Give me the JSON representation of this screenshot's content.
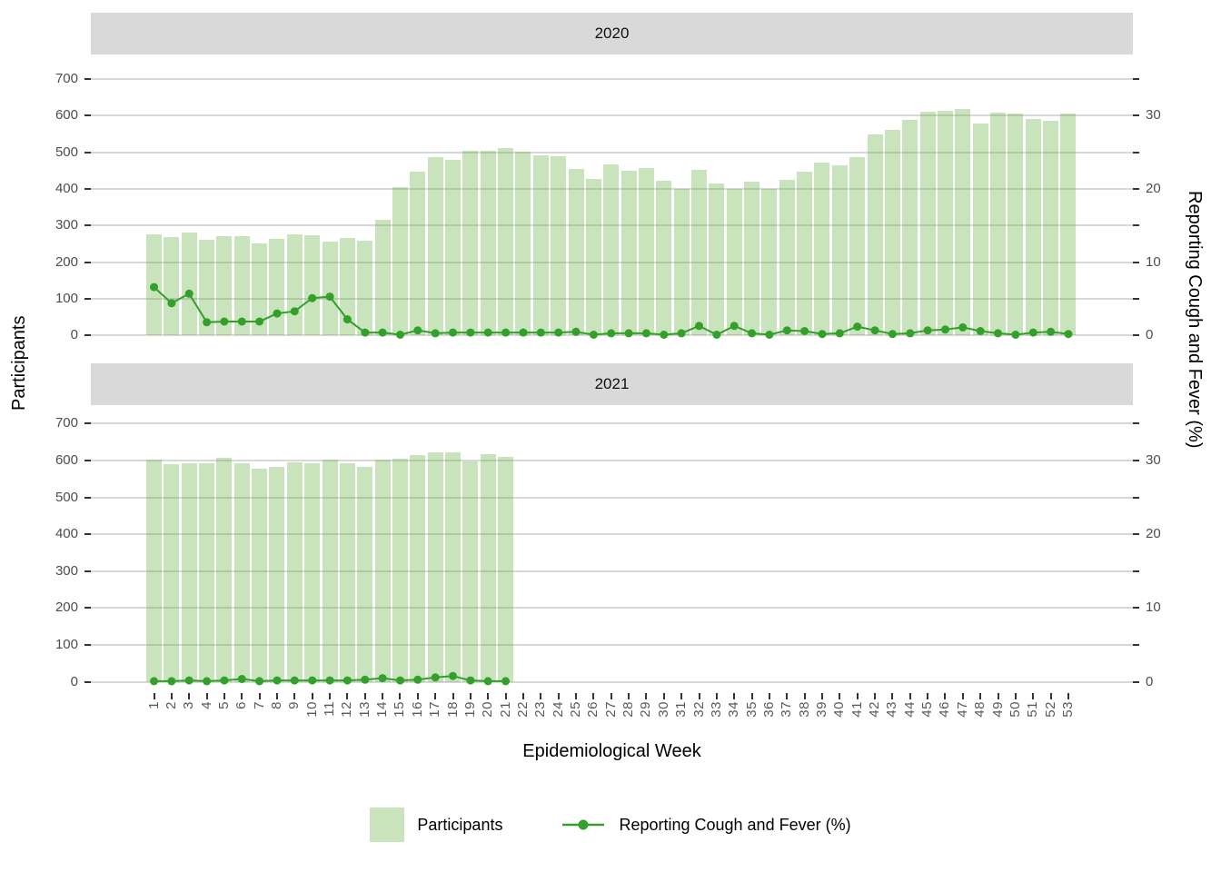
{
  "figure": {
    "x_axis": {
      "title": "Epidemiological Week",
      "ticks": [
        1,
        2,
        3,
        4,
        5,
        6,
        7,
        8,
        9,
        10,
        11,
        12,
        13,
        14,
        15,
        16,
        17,
        18,
        19,
        20,
        21,
        22,
        23,
        24,
        25,
        26,
        27,
        28,
        29,
        30,
        31,
        32,
        33,
        34,
        35,
        36,
        37,
        38,
        39,
        40,
        41,
        42,
        43,
        44,
        45,
        46,
        47,
        48,
        49,
        50,
        51,
        52,
        53
      ]
    },
    "left_axis": {
      "title": "Participants",
      "ticks": [
        0,
        100,
        200,
        300,
        400,
        500,
        600,
        700
      ]
    },
    "right_axis": {
      "title": "Reporting Cough and Fever (%)",
      "tick_labels": [
        0,
        10,
        20,
        30
      ],
      "minor_ticks": [
        5,
        15,
        25,
        35
      ]
    },
    "legend": {
      "items": [
        {
          "type": "fill",
          "label": "Participants"
        },
        {
          "type": "line",
          "label": "Reporting Cough and Fever (%)"
        }
      ]
    },
    "colors": {
      "bar_fill": "#c9e3bc",
      "line": "#33a02c",
      "strip_bg": "#d9d9d9",
      "gridline": "#d8d8d8",
      "axis_text": "#4d4d4d",
      "title_text": "#000000"
    }
  },
  "chart_data": [
    {
      "type": "bar",
      "facet": "2020",
      "x": [
        1,
        2,
        3,
        4,
        5,
        6,
        7,
        8,
        9,
        10,
        11,
        12,
        13,
        14,
        15,
        16,
        17,
        18,
        19,
        20,
        21,
        22,
        23,
        24,
        25,
        26,
        27,
        28,
        29,
        30,
        31,
        32,
        33,
        34,
        35,
        36,
        37,
        38,
        39,
        40,
        41,
        42,
        43,
        44,
        45,
        46,
        47,
        48,
        49,
        50,
        51,
        52,
        53
      ],
      "series": [
        {
          "name": "Participants",
          "type": "bar",
          "axis": "left",
          "values": [
            277,
            268,
            282,
            261,
            272,
            270,
            252,
            264,
            275,
            274,
            255,
            265,
            258,
            315,
            405,
            447,
            487,
            479,
            505,
            504,
            512,
            502,
            492,
            488,
            454,
            427,
            468,
            449,
            456,
            422,
            401,
            452,
            414,
            401,
            420,
            401,
            424,
            447,
            471,
            464,
            486,
            549,
            562,
            589,
            610,
            612,
            617,
            578,
            608,
            607,
            592,
            585,
            605
          ]
        },
        {
          "name": "Reporting Cough and Fever (%)",
          "type": "line",
          "axis": "right",
          "values": [
            6.6,
            4.4,
            5.7,
            1.8,
            1.9,
            1.9,
            1.9,
            3.0,
            3.3,
            5.1,
            5.3,
            2.2,
            0.4,
            0.4,
            0.1,
            0.7,
            0.3,
            0.4,
            0.4,
            0.4,
            0.4,
            0.4,
            0.4,
            0.4,
            0.5,
            0.1,
            0.3,
            0.3,
            0.3,
            0.1,
            0.3,
            1.3,
            0.1,
            1.3,
            0.3,
            0.1,
            0.7,
            0.6,
            0.2,
            0.3,
            1.2,
            0.7,
            0.2,
            0.3,
            0.7,
            0.8,
            1.1,
            0.6,
            0.3,
            0.1,
            0.4,
            0.5,
            0.2
          ]
        }
      ],
      "left_ylim": [
        0,
        700
      ],
      "right_ylim": [
        0,
        30
      ]
    },
    {
      "type": "bar",
      "facet": "2021",
      "x": [
        1,
        2,
        3,
        4,
        5,
        6,
        7,
        8,
        9,
        10,
        11,
        12,
        13,
        14,
        15,
        16,
        17,
        18,
        19,
        20,
        21
      ],
      "series": [
        {
          "name": "Participants",
          "type": "bar",
          "axis": "left",
          "values": [
            603,
            589,
            593,
            593,
            607,
            592,
            579,
            583,
            596,
            592,
            603,
            592,
            584,
            603,
            605,
            615,
            622,
            622,
            598,
            617,
            611
          ]
        },
        {
          "name": "Reporting Cough and Fever (%)",
          "type": "line",
          "axis": "right",
          "values": [
            0.1,
            0.1,
            0.2,
            0.1,
            0.2,
            0.4,
            0.1,
            0.2,
            0.2,
            0.2,
            0.2,
            0.2,
            0.3,
            0.5,
            0.2,
            0.3,
            0.6,
            0.8,
            0.2,
            0.1,
            0.1
          ]
        }
      ],
      "left_ylim": [
        0,
        700
      ],
      "right_ylim": [
        0,
        30
      ]
    }
  ]
}
